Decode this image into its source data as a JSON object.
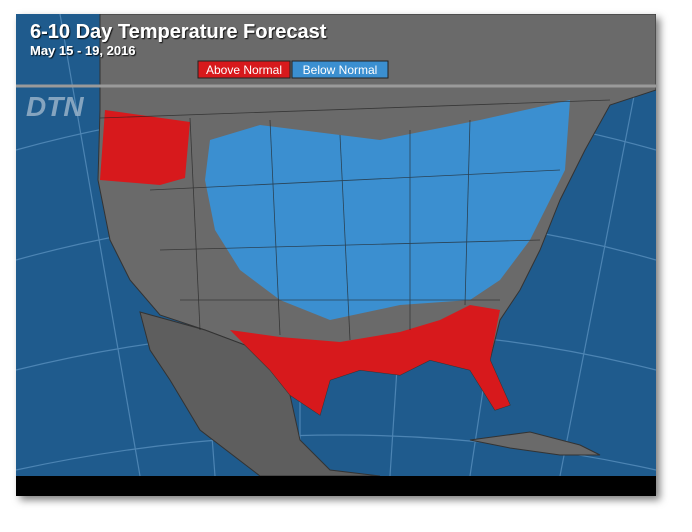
{
  "header": {
    "title": "6-10 Day Temperature Forecast",
    "subtitle": "May 15 - 19, 2016"
  },
  "legend": {
    "items": [
      "Above Normal",
      "Below Normal"
    ]
  },
  "logo": "DTN"
}
